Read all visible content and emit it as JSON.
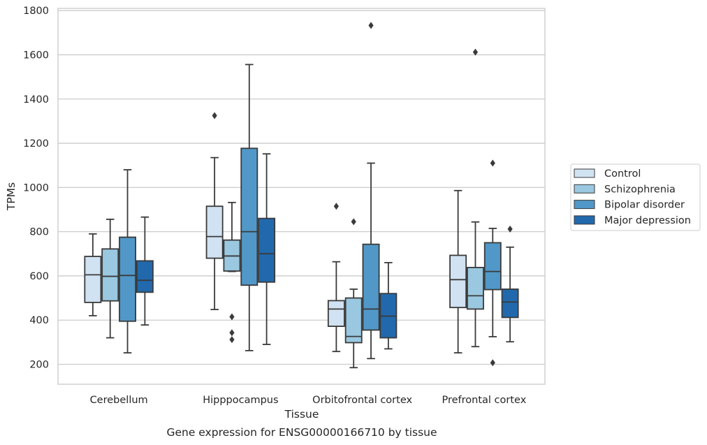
{
  "chart_data": {
    "type": "box",
    "caption": "Gene expression for ENSG00000166710 by tissue",
    "xlabel": "Tissue",
    "ylabel": "TPMs",
    "ylim": [
      110,
      1810
    ],
    "yticks": [
      200,
      400,
      600,
      800,
      1000,
      1200,
      1400,
      1600,
      1800
    ],
    "grid": true,
    "legend_position": "right",
    "categories": [
      "Cerebellum",
      "Hipppocampus",
      "Orbitofrontal cortex",
      "Prefrontal cortex"
    ],
    "series": [
      {
        "name": "Control",
        "color": "#d1e2f2",
        "boxes": [
          {
            "whislo": 420,
            "q1": 480,
            "med": 605,
            "q3": 688,
            "whishi": 790,
            "fliers": []
          },
          {
            "whislo": 448,
            "q1": 680,
            "med": 778,
            "q3": 915,
            "whishi": 1135,
            "fliers": [
              1325
            ]
          },
          {
            "whislo": 258,
            "q1": 372,
            "med": 450,
            "q3": 488,
            "whishi": 664,
            "fliers": [
              915
            ]
          },
          {
            "whislo": 252,
            "q1": 457,
            "med": 583,
            "q3": 693,
            "whishi": 986,
            "fliers": []
          }
        ]
      },
      {
        "name": "Schizophrenia",
        "color": "#9ac8e0",
        "boxes": [
          {
            "whislo": 320,
            "q1": 487,
            "med": 598,
            "q3": 722,
            "whishi": 856,
            "fliers": []
          },
          {
            "whislo": 620,
            "q1": 622,
            "med": 690,
            "q3": 762,
            "whishi": 932,
            "fliers": [
              415,
              343,
              312
            ]
          },
          {
            "whislo": 185,
            "q1": 298,
            "med": 326,
            "q3": 500,
            "whishi": 540,
            "fliers": [
              845
            ]
          },
          {
            "whislo": 280,
            "q1": 450,
            "med": 510,
            "q3": 638,
            "whishi": 844,
            "fliers": [
              1612
            ]
          }
        ]
      },
      {
        "name": "Bipolar disorder",
        "color": "#5198c8",
        "boxes": [
          {
            "whislo": 252,
            "q1": 395,
            "med": 602,
            "q3": 775,
            "whishi": 1080,
            "fliers": []
          },
          {
            "whislo": 262,
            "q1": 558,
            "med": 800,
            "q3": 1177,
            "whishi": 1556,
            "fliers": []
          },
          {
            "whislo": 226,
            "q1": 355,
            "med": 450,
            "q3": 743,
            "whishi": 1110,
            "fliers": [
              1733
            ]
          },
          {
            "whislo": 325,
            "q1": 538,
            "med": 620,
            "q3": 750,
            "whishi": 815,
            "fliers": [
              1110,
              207
            ]
          }
        ]
      },
      {
        "name": "Major depression",
        "color": "#2169ac",
        "boxes": [
          {
            "whislo": 378,
            "q1": 526,
            "med": 580,
            "q3": 668,
            "whishi": 866,
            "fliers": []
          },
          {
            "whislo": 290,
            "q1": 572,
            "med": 700,
            "q3": 860,
            "whishi": 1152,
            "fliers": []
          },
          {
            "whislo": 270,
            "q1": 320,
            "med": 418,
            "q3": 520,
            "whishi": 660,
            "fliers": []
          },
          {
            "whislo": 302,
            "q1": 412,
            "med": 482,
            "q3": 540,
            "whishi": 730,
            "fliers": [
              812
            ]
          }
        ]
      }
    ]
  }
}
